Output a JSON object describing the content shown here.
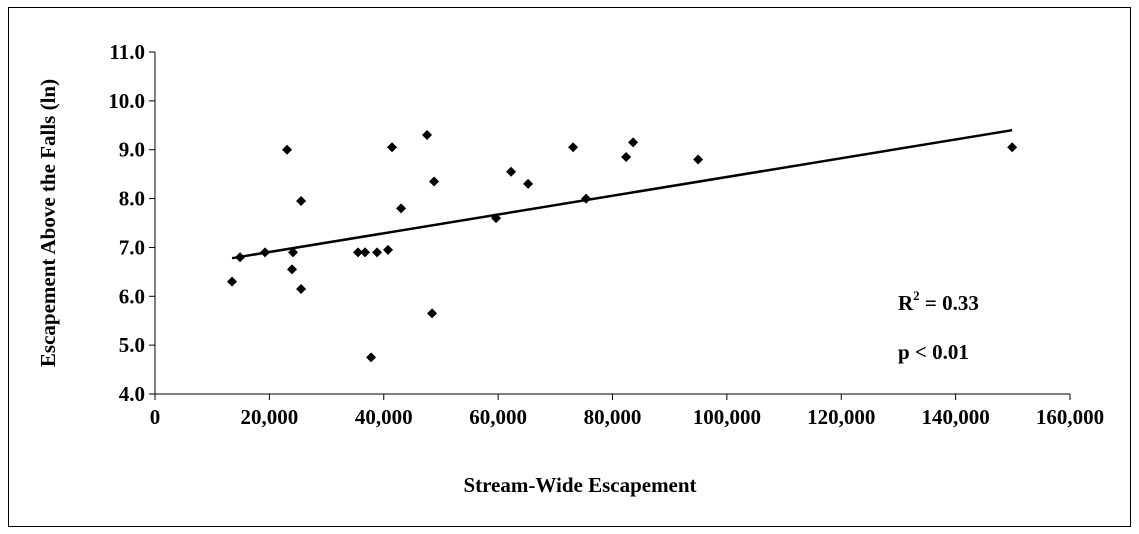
{
  "chart_data": {
    "type": "scatter",
    "x_label": "Stream-Wide Escapement",
    "y_label": "Escapement Above the Falls (ln)",
    "series": [
      {
        "color": "#000000",
        "x": [
          13470,
          14870,
          19240,
          23090,
          24140,
          23960,
          25540,
          25540,
          35500,
          36730,
          37780,
          38830,
          40750,
          41450,
          43030,
          47570,
          48450,
          48800,
          59640,
          62260,
          65240,
          73110,
          75380,
          82380,
          83600,
          94970,
          149890
        ],
        "values": [
          6.3,
          6.8,
          6.9,
          9.0,
          6.9,
          6.55,
          7.95,
          6.15,
          6.9,
          6.9,
          4.75,
          6.9,
          6.95,
          9.05,
          7.8,
          9.3,
          5.65,
          8.35,
          7.6,
          8.55,
          8.3,
          9.05,
          8.0,
          8.85,
          9.15,
          8.8,
          9.05
        ]
      }
    ],
    "trendline": {
      "x": [
        13470,
        149890
      ],
      "values": [
        6.78,
        9.4
      ]
    },
    "annotations": [
      {
        "text": "R",
        "sup": "2",
        "rest": " = 0.33"
      },
      {
        "text": "p < 0.01"
      }
    ],
    "xlim": [
      0,
      160000
    ],
    "xticks": [
      0,
      {
        "value": 20000,
        "label": "20,000"
      },
      {
        "value": 40000,
        "label": "40,000"
      },
      {
        "value": 60000,
        "label": "60,000"
      },
      {
        "value": 80000,
        "label": "80,000"
      },
      {
        "value": 100000,
        "label": "100,000"
      },
      {
        "value": 120000,
        "label": "120,000"
      },
      {
        "value": 140000,
        "label": "140,000"
      },
      {
        "value": 160000,
        "label": "160,000"
      }
    ],
    "ylim": [
      4.0,
      11.0
    ],
    "yticks": [
      {
        "value": 4.0,
        "label": "4.0"
      },
      {
        "value": 5.0,
        "label": "5.0"
      },
      {
        "value": 6.0,
        "label": "6.0"
      },
      {
        "value": 7.0,
        "label": "7.0"
      },
      {
        "value": 8.0,
        "label": "8.0"
      },
      {
        "value": 9.0,
        "label": "9.0"
      },
      {
        "value": 10.0,
        "label": "10.0"
      },
      {
        "value": 11.0,
        "label": "11.0"
      }
    ],
    "grid": false
  }
}
